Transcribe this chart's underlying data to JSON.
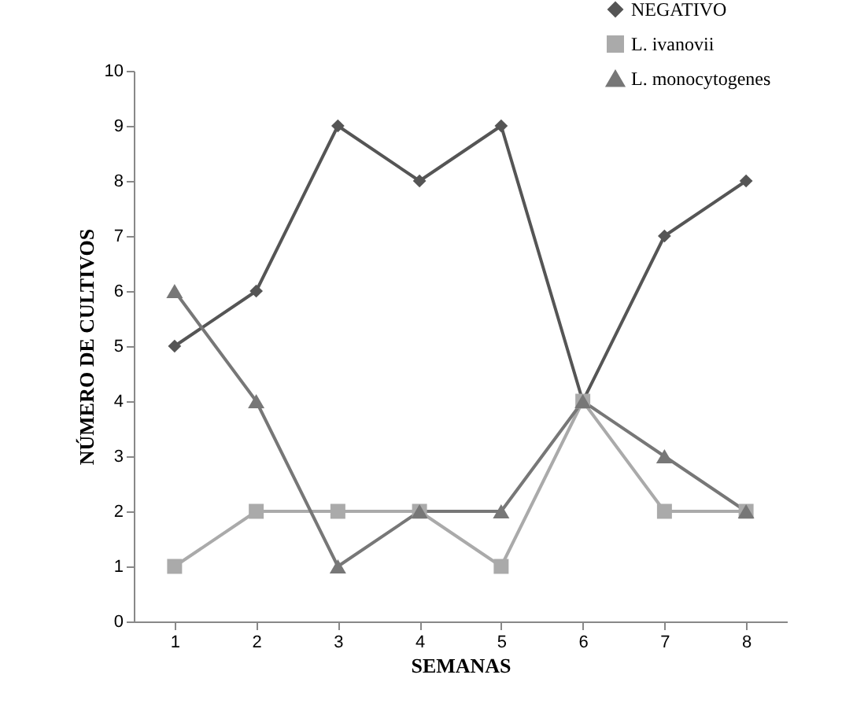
{
  "chart_data": {
    "type": "line",
    "xlabel": "SEMANAS",
    "ylabel": "NÚMERO DE CULTIVOS",
    "categories": [
      "1",
      "2",
      "3",
      "4",
      "5",
      "6",
      "7",
      "8"
    ],
    "series": [
      {
        "name": "NEGATIVO",
        "color": "#555555",
        "marker": "diamond",
        "values": [
          5,
          6,
          9,
          8,
          9,
          4,
          7,
          8
        ]
      },
      {
        "name": "L. ivanovii",
        "color": "#aaaaaa",
        "marker": "square",
        "values": [
          1,
          2,
          2,
          2,
          1,
          4,
          2,
          2
        ]
      },
      {
        "name": "L. monocytogenes",
        "color": "#777777",
        "marker": "triangle",
        "values": [
          6,
          4,
          1,
          2,
          2,
          4,
          3,
          2
        ]
      }
    ],
    "ylim": [
      0,
      10
    ],
    "yticks": [
      0,
      1,
      2,
      3,
      4,
      5,
      6,
      7,
      8,
      9,
      10
    ],
    "grid": false,
    "legend": "top right",
    "line_style": "solid"
  }
}
